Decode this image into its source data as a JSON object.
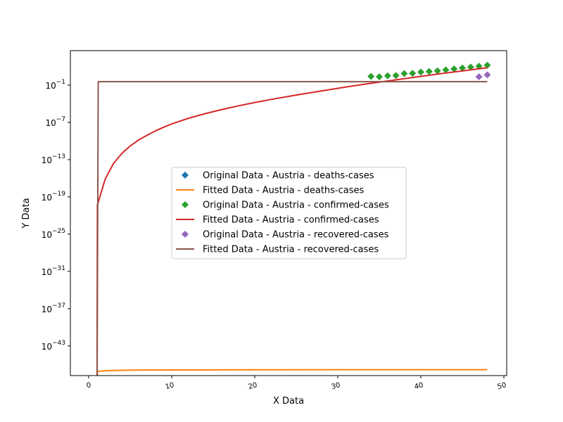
{
  "chart_data": {
    "type": "line",
    "title": "",
    "xlabel": "X Data",
    "ylabel": "Y Data",
    "xlim": [
      -2,
      49
    ],
    "ylog": true,
    "ylim_log10": [
      -48.3,
      3.6
    ],
    "grid": false,
    "legend_position": "center",
    "x_ticks": [
      0,
      10,
      20,
      30,
      40,
      50
    ],
    "y_tick_exponents": [
      -1,
      -7,
      -13,
      -19,
      -25,
      -31,
      -37,
      -43
    ],
    "series": [
      {
        "name": "Original Data - Austria - deaths-cases",
        "kind": "markers",
        "marker": "diamond",
        "color": "#1f77b4",
        "x": [],
        "log10_y": []
      },
      {
        "name": "Fitted Data - Austria - deaths-cases",
        "kind": "line",
        "color": "#ff7f0e",
        "x": [
          1,
          1.05,
          2,
          3,
          4,
          5,
          7,
          10,
          15,
          20,
          30,
          40,
          48
        ],
        "log10_y": [
          -100,
          -47.1,
          -47.0,
          -46.95,
          -46.92,
          -46.9,
          -46.88,
          -46.86,
          -46.85,
          -46.84,
          -46.83,
          -46.83,
          -46.83
        ]
      },
      {
        "name": "Original Data - Austria - confirmed-cases",
        "kind": "markers",
        "marker": "diamond",
        "color": "#2ca02c",
        "x": [
          34,
          35,
          36,
          37,
          38,
          39,
          40,
          41,
          42,
          43,
          44,
          45,
          46,
          47,
          48
        ],
        "log10_y": [
          0.4,
          0.35,
          0.5,
          0.55,
          0.85,
          0.9,
          1.1,
          1.2,
          1.3,
          1.45,
          1.6,
          1.75,
          1.9,
          2.05,
          2.2
        ]
      },
      {
        "name": "Fitted Data - Austria - confirmed-cases",
        "kind": "line",
        "color": "#d62728",
        "x": [
          1,
          1.05,
          2,
          3,
          4,
          5,
          6,
          7,
          8,
          9,
          10,
          12,
          14,
          16,
          18,
          20,
          22,
          25,
          28,
          31,
          34,
          37,
          40,
          43,
          46,
          48
        ],
        "log10_y": [
          -100,
          -20.3,
          -16.1,
          -13.6,
          -12.0,
          -10.8,
          -9.85,
          -9.1,
          -8.4,
          -7.8,
          -7.25,
          -6.35,
          -5.6,
          -4.95,
          -4.35,
          -3.8,
          -3.3,
          -2.6,
          -1.95,
          -1.3,
          -0.7,
          -0.15,
          0.4,
          0.95,
          1.45,
          1.8
        ]
      },
      {
        "name": "Original Data - Austria - recovered-cases",
        "kind": "markers",
        "marker": "diamond",
        "color": "#9467bd",
        "x": [
          47,
          48
        ],
        "log10_y": [
          0.35,
          0.65
        ]
      },
      {
        "name": "Fitted Data - Austria - recovered-cases",
        "kind": "line",
        "color": "#8c564b",
        "x": [
          1,
          1.15,
          48
        ],
        "log10_y": [
          -100,
          -0.45,
          -0.45
        ]
      }
    ]
  }
}
